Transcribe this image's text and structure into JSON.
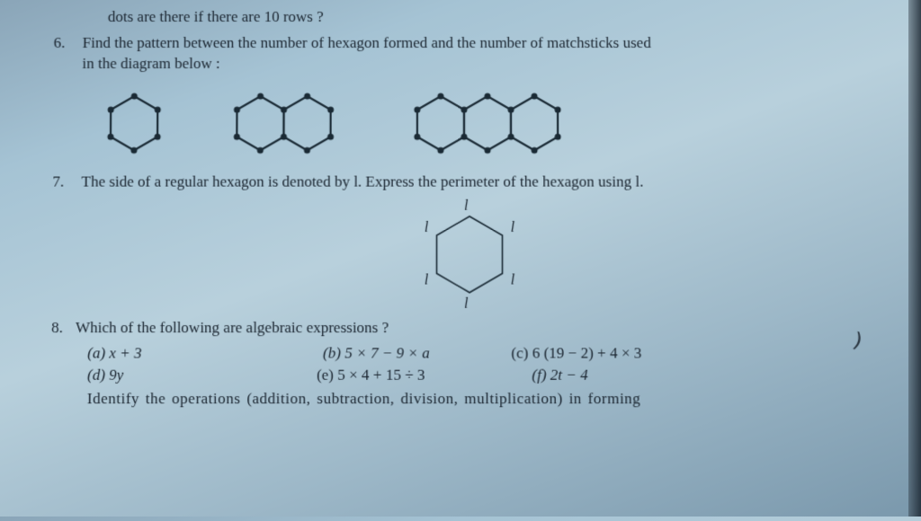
{
  "partialTop": "dots are there if there are 10 rows ?",
  "q6": {
    "num": "6.",
    "text1": "Find the pattern between the number of hexagon formed and the number of matchsticks used",
    "text2": "in the diagram below :"
  },
  "q7": {
    "num": "7.",
    "text": "The side of a regular hexagon is denoted by l. Express the perimeter of the hexagon using l."
  },
  "q8": {
    "num": "8.",
    "text": "Which of the following are algebraic expressions ?",
    "opts": {
      "a": "(a)  x + 3",
      "b": "(b)  5 × 7 − 9 × a",
      "c": "(c)  6 (19 − 2) + 4 × 3",
      "d": "(d)  9y",
      "e": "(e)  5 × 4 + 15 ÷ 3",
      "f": "(f)  2t − 4"
    }
  },
  "identify": "Identify the operations (addition, subtraction, division, multiplication) in forming",
  "hexStyle": {
    "stroke": "#1a2a35",
    "strokeWidth": 2.2,
    "vertexRadius": 3.5,
    "vertexFill": "#1a2a35",
    "labeledStroke": "#1a2a35",
    "labeledStrokeWidth": 1.6
  },
  "hexLabels": {
    "top": "l",
    "tl": "l",
    "tr": "l",
    "bl": "l",
    "br": "l",
    "bottom": "l"
  }
}
